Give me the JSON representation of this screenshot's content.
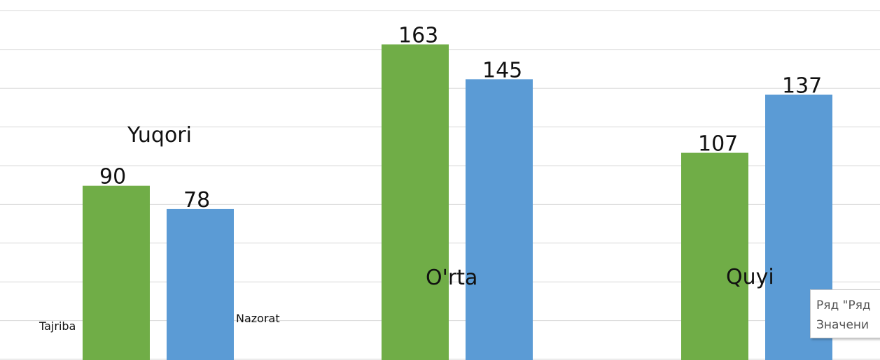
{
  "chart_data": {
    "type": "bar",
    "categories": [
      "Yuqori",
      "O'rta",
      "Quyi"
    ],
    "series": [
      {
        "name": "Tajriba",
        "values": [
          90,
          163,
          107
        ],
        "color": "#70ad47"
      },
      {
        "name": "Nazorat",
        "values": [
          78,
          145,
          137
        ],
        "color": "#5b9bd5"
      }
    ],
    "ylim": [
      0,
      180
    ],
    "grid": true,
    "title": "",
    "xlabel": "",
    "ylabel": ""
  },
  "tooltip": {
    "line1": "Ряд \"Ряд",
    "line2": "Значени"
  }
}
